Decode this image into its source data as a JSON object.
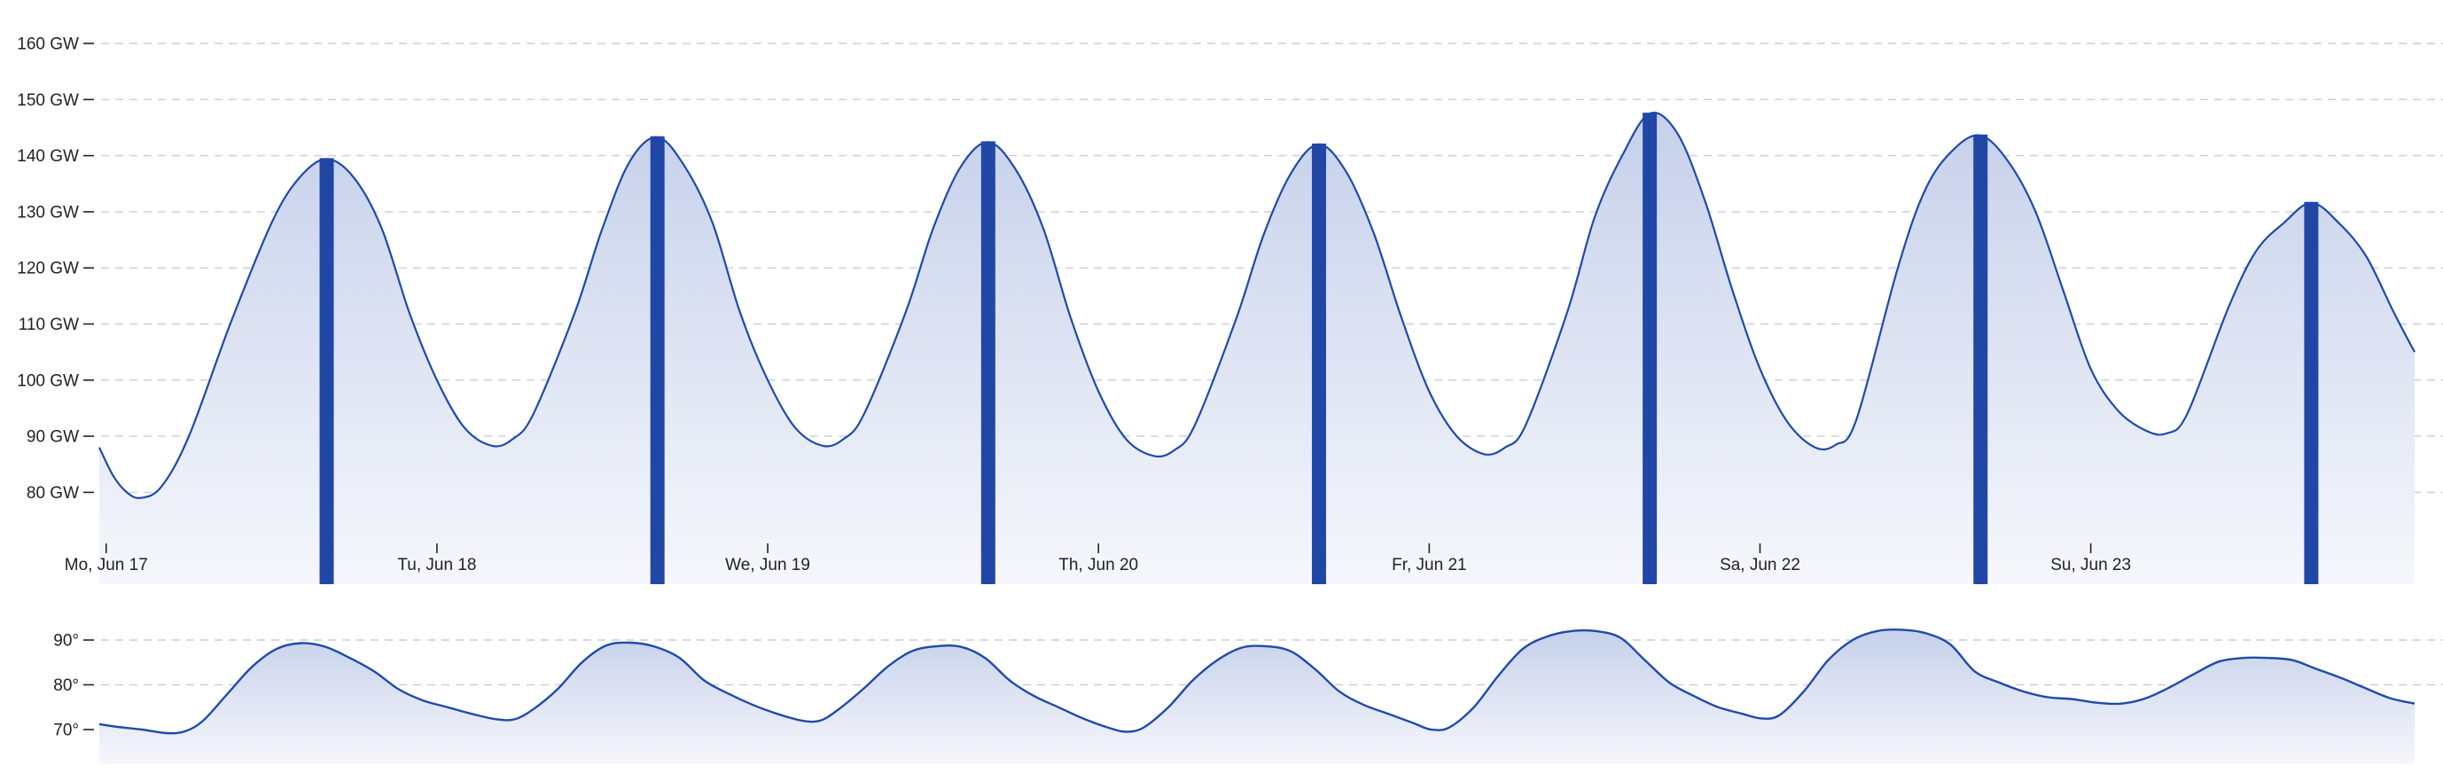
{
  "colors": {
    "line": "#1f4aa8",
    "bar": "#2147a6",
    "area_top": "#c5d0ea",
    "area_bottom": "#f3f5fb",
    "grid": "#c9cdda",
    "text": "#222222"
  },
  "chart_data": [
    {
      "type": "area",
      "name": "load",
      "unit": "GW",
      "grid": true,
      "ylim": [
        70,
        160
      ],
      "y_ticks": [
        80,
        90,
        100,
        110,
        120,
        130,
        140,
        150,
        160
      ],
      "y_tick_labels": [
        "80 GW",
        "90 GW",
        "100 GW",
        "110 GW",
        "120 GW",
        "130 GW",
        "140 GW",
        "150 GW",
        "160 GW"
      ],
      "x_ticks": [
        0,
        24,
        48,
        72,
        96,
        120,
        144
      ],
      "x_tick_labels": [
        "Mo, Jun 17",
        "Tu, Jun 18",
        "We, Jun 19",
        "Th, Jun 20",
        "Fr, Jun 21",
        "Sa, Jun 22",
        "Su, Jun 23"
      ],
      "x_range_hours": [
        -0.5,
        167.5
      ],
      "keypoints": [
        [
          -0.5,
          88
        ],
        [
          0.5,
          83
        ],
        [
          1.5,
          80
        ],
        [
          2.5,
          79
        ],
        [
          4,
          81
        ],
        [
          6,
          90
        ],
        [
          9,
          110
        ],
        [
          12,
          128
        ],
        [
          14,
          136
        ],
        [
          16,
          139.4
        ],
        [
          18,
          136
        ],
        [
          20,
          127
        ],
        [
          22,
          112
        ],
        [
          24,
          100
        ],
        [
          26,
          91.5
        ],
        [
          28,
          88.3
        ],
        [
          29.5,
          89.5
        ],
        [
          31,
          94
        ],
        [
          34,
          112
        ],
        [
          36,
          127
        ],
        [
          38,
          139
        ],
        [
          40,
          143.3
        ],
        [
          42,
          138
        ],
        [
          44,
          128
        ],
        [
          46,
          112
        ],
        [
          48,
          100
        ],
        [
          50,
          91.5
        ],
        [
          52,
          88.3
        ],
        [
          53.5,
          89.5
        ],
        [
          55,
          94
        ],
        [
          58,
          112
        ],
        [
          60,
          127
        ],
        [
          62,
          138
        ],
        [
          64,
          142.4
        ],
        [
          66,
          137.5
        ],
        [
          68,
          127
        ],
        [
          70,
          111
        ],
        [
          72,
          98
        ],
        [
          74,
          89.5
        ],
        [
          76,
          86.5
        ],
        [
          77.5,
          87.5
        ],
        [
          79,
          92
        ],
        [
          82,
          111
        ],
        [
          84,
          126
        ],
        [
          86,
          137
        ],
        [
          88,
          142
        ],
        [
          90,
          137
        ],
        [
          92,
          126
        ],
        [
          94,
          111
        ],
        [
          96,
          98
        ],
        [
          98,
          90
        ],
        [
          100,
          86.8
        ],
        [
          101.5,
          88
        ],
        [
          103,
          92
        ],
        [
          106,
          112
        ],
        [
          108,
          129
        ],
        [
          110,
          140
        ],
        [
          112,
          147.5
        ],
        [
          114,
          144
        ],
        [
          116,
          132
        ],
        [
          118,
          116
        ],
        [
          120,
          102
        ],
        [
          122,
          92.5
        ],
        [
          124,
          88
        ],
        [
          125.5,
          88.5
        ],
        [
          127,
          93
        ],
        [
          130,
          120
        ],
        [
          132,
          134
        ],
        [
          134,
          141
        ],
        [
          136,
          143.6
        ],
        [
          138,
          139
        ],
        [
          140,
          130
        ],
        [
          142,
          116
        ],
        [
          144,
          102
        ],
        [
          146,
          94.5
        ],
        [
          148,
          91
        ],
        [
          149.5,
          90.5
        ],
        [
          151,
          94
        ],
        [
          154,
          113
        ],
        [
          156,
          123
        ],
        [
          158,
          128
        ],
        [
          160,
          131.6
        ],
        [
          162,
          128
        ],
        [
          164,
          122
        ],
        [
          166,
          112
        ],
        [
          167.5,
          105
        ]
      ],
      "daily_peak_bars": [
        {
          "hour": 16,
          "value": 139.4
        },
        {
          "hour": 40,
          "value": 143.3
        },
        {
          "hour": 64,
          "value": 142.4
        },
        {
          "hour": 88,
          "value": 142
        },
        {
          "hour": 112,
          "value": 147.5
        },
        {
          "hour": 136,
          "value": 143.6
        },
        {
          "hour": 160,
          "value": 131.6
        }
      ]
    },
    {
      "type": "area",
      "name": "temperature",
      "unit": "°",
      "grid": true,
      "ylim": [
        66,
        95
      ],
      "y_ticks": [
        70,
        80,
        90
      ],
      "y_tick_labels": [
        "70°",
        "80°",
        "90°"
      ],
      "x_range_hours": [
        -0.5,
        167.5
      ],
      "keypoints": [
        [
          -0.5,
          71.2
        ],
        [
          1,
          70.6
        ],
        [
          3,
          70.0
        ],
        [
          5,
          69.2
        ],
        [
          6.5,
          69.6
        ],
        [
          8,
          72
        ],
        [
          10,
          78
        ],
        [
          12,
          84
        ],
        [
          14,
          88
        ],
        [
          16,
          89.3
        ],
        [
          18,
          88.5
        ],
        [
          20,
          86
        ],
        [
          22,
          83
        ],
        [
          24,
          79
        ],
        [
          26,
          76.5
        ],
        [
          28,
          75
        ],
        [
          30,
          73.5
        ],
        [
          32,
          72.3
        ],
        [
          33.5,
          72.3
        ],
        [
          35,
          74.5
        ],
        [
          37,
          79
        ],
        [
          39,
          85
        ],
        [
          41,
          88.8
        ],
        [
          43,
          89.4
        ],
        [
          45,
          88.5
        ],
        [
          47,
          86
        ],
        [
          49,
          81
        ],
        [
          51,
          78
        ],
        [
          53,
          75.5
        ],
        [
          55,
          73.5
        ],
        [
          57,
          72
        ],
        [
          58.5,
          72
        ],
        [
          60,
          74.5
        ],
        [
          62,
          79
        ],
        [
          64,
          84
        ],
        [
          66,
          87.5
        ],
        [
          68,
          88.6
        ],
        [
          70,
          88.5
        ],
        [
          72,
          86
        ],
        [
          74,
          81
        ],
        [
          76,
          77.5
        ],
        [
          78,
          75
        ],
        [
          80,
          72.5
        ],
        [
          82,
          70.5
        ],
        [
          83.5,
          69.5
        ],
        [
          85,
          70.5
        ],
        [
          87,
          75
        ],
        [
          89,
          81
        ],
        [
          91,
          85.5
        ],
        [
          93,
          88.3
        ],
        [
          95,
          88.6
        ],
        [
          97,
          87.5
        ],
        [
          99,
          83.5
        ],
        [
          101,
          78.5
        ],
        [
          103,
          75.5
        ],
        [
          105,
          73.5
        ],
        [
          107,
          71.5
        ],
        [
          108.5,
          70
        ],
        [
          110,
          70.5
        ],
        [
          112,
          75
        ],
        [
          114,
          82
        ],
        [
          116,
          88
        ],
        [
          118,
          90.8
        ],
        [
          120,
          92
        ],
        [
          122,
          92
        ],
        [
          124,
          90.5
        ],
        [
          126,
          85.5
        ],
        [
          128,
          80.5
        ],
        [
          130,
          77.5
        ],
        [
          132,
          75
        ],
        [
          134,
          73.5
        ],
        [
          135.5,
          72.5
        ],
        [
          137,
          73.2
        ],
        [
          139,
          78.5
        ],
        [
          141,
          85.5
        ],
        [
          143,
          90
        ],
        [
          145,
          92
        ],
        [
          147,
          92.3
        ],
        [
          149,
          91.5
        ],
        [
          151,
          89
        ],
        [
          153,
          83
        ],
        [
          155,
          80.5
        ],
        [
          157,
          78.5
        ],
        [
          159,
          77.2
        ],
        [
          161,
          76.8
        ],
        [
          163,
          76
        ],
        [
          165,
          75.8
        ],
        [
          167,
          77
        ],
        [
          169,
          79.5
        ],
        [
          171,
          82.5
        ],
        [
          173,
          85.2
        ],
        [
          175,
          86
        ],
        [
          177,
          86
        ],
        [
          179,
          85.5
        ],
        [
          181,
          83.5
        ],
        [
          183,
          81.5
        ],
        [
          185,
          79.2
        ],
        [
          187,
          77
        ],
        [
          189,
          75.8
        ]
      ]
    }
  ]
}
